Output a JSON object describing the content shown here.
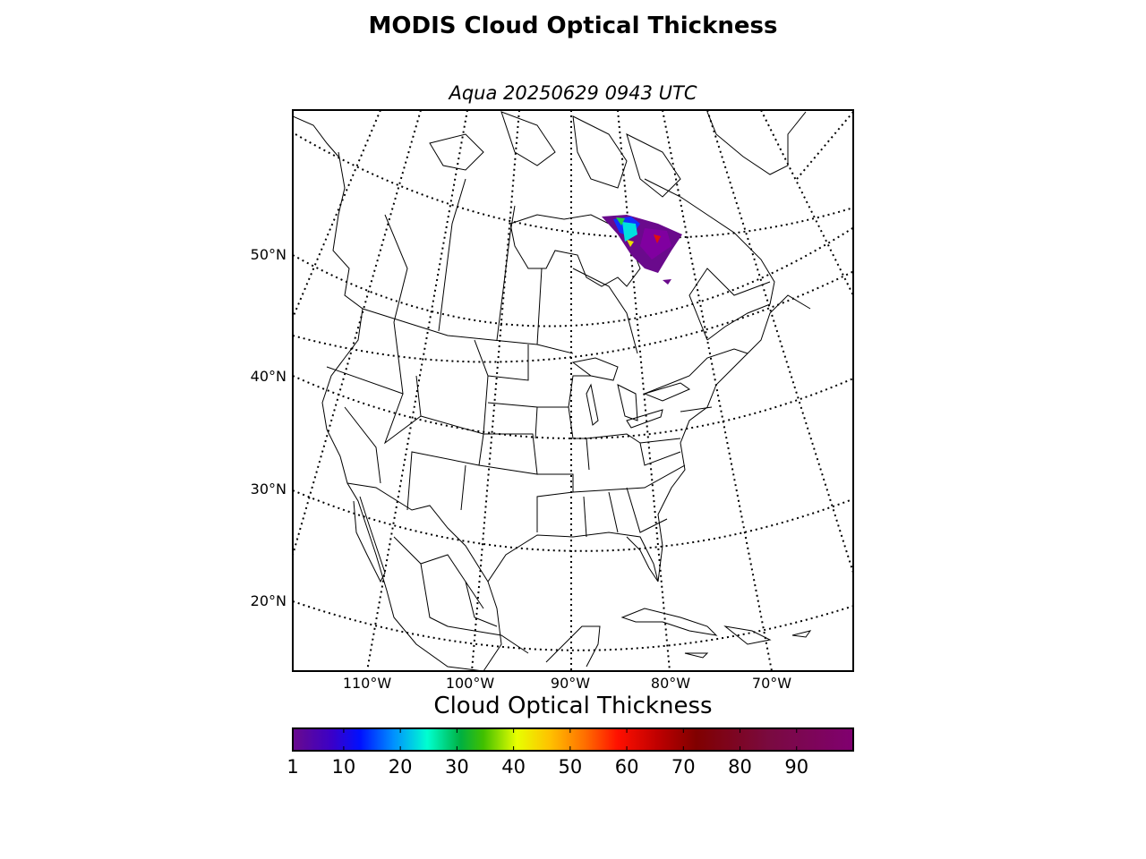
{
  "title": "MODIS Cloud Optical Thickness",
  "subtitle": "Aqua 20250629 0943 UTC",
  "map": {
    "lat_labels": [
      "50°N",
      "40°N",
      "30°N",
      "20°N"
    ],
    "lon_labels": [
      "110°W",
      "100°W",
      "90°W",
      "80°W",
      "70°W"
    ],
    "coastline_color": "#000000",
    "gridline_style": "dotted"
  },
  "colorbar": {
    "label": "Cloud Optical Thickness",
    "ticks": [
      "1",
      "10",
      "20",
      "30",
      "40",
      "50",
      "60",
      "70",
      "80",
      "90"
    ],
    "range": [
      1,
      100
    ],
    "colormap": [
      "#6a0a8c",
      "#3a00c8",
      "#0010ff",
      "#0090ff",
      "#00ffd0",
      "#00b040",
      "#40c000",
      "#e8ff00",
      "#ffc000",
      "#ff7000",
      "#ff1000",
      "#c00000",
      "#800000",
      "#7a0a40",
      "#800070"
    ]
  }
}
